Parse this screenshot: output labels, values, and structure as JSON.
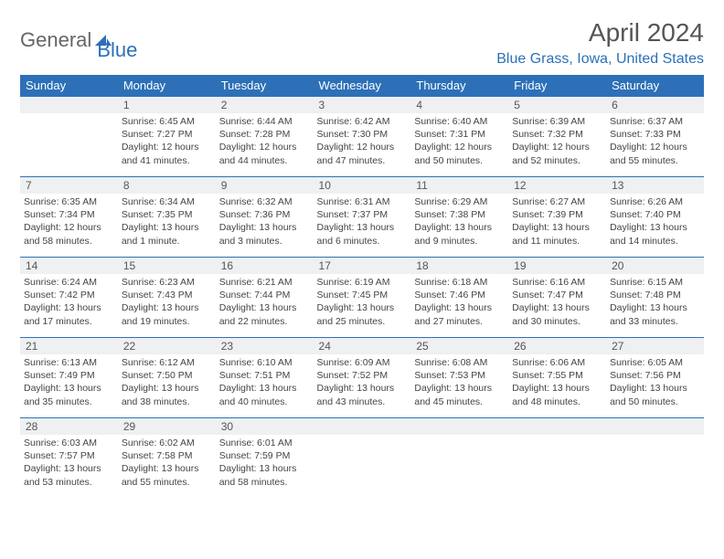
{
  "logo": {
    "word1": "General",
    "word2": "Blue"
  },
  "title": "April 2024",
  "location": "Blue Grass, Iowa, United States",
  "colors": {
    "accent": "#2d70b7",
    "header_bg": "#2d70b7",
    "daynum_bg": "#eef0f2",
    "text": "#444444"
  },
  "day_headers": [
    "Sunday",
    "Monday",
    "Tuesday",
    "Wednesday",
    "Thursday",
    "Friday",
    "Saturday"
  ],
  "weeks": [
    [
      {
        "n": "",
        "sr": "",
        "ss": "",
        "dl": ""
      },
      {
        "n": "1",
        "sr": "Sunrise: 6:45 AM",
        "ss": "Sunset: 7:27 PM",
        "dl": "Daylight: 12 hours and 41 minutes."
      },
      {
        "n": "2",
        "sr": "Sunrise: 6:44 AM",
        "ss": "Sunset: 7:28 PM",
        "dl": "Daylight: 12 hours and 44 minutes."
      },
      {
        "n": "3",
        "sr": "Sunrise: 6:42 AM",
        "ss": "Sunset: 7:30 PM",
        "dl": "Daylight: 12 hours and 47 minutes."
      },
      {
        "n": "4",
        "sr": "Sunrise: 6:40 AM",
        "ss": "Sunset: 7:31 PM",
        "dl": "Daylight: 12 hours and 50 minutes."
      },
      {
        "n": "5",
        "sr": "Sunrise: 6:39 AM",
        "ss": "Sunset: 7:32 PM",
        "dl": "Daylight: 12 hours and 52 minutes."
      },
      {
        "n": "6",
        "sr": "Sunrise: 6:37 AM",
        "ss": "Sunset: 7:33 PM",
        "dl": "Daylight: 12 hours and 55 minutes."
      }
    ],
    [
      {
        "n": "7",
        "sr": "Sunrise: 6:35 AM",
        "ss": "Sunset: 7:34 PM",
        "dl": "Daylight: 12 hours and 58 minutes."
      },
      {
        "n": "8",
        "sr": "Sunrise: 6:34 AM",
        "ss": "Sunset: 7:35 PM",
        "dl": "Daylight: 13 hours and 1 minute."
      },
      {
        "n": "9",
        "sr": "Sunrise: 6:32 AM",
        "ss": "Sunset: 7:36 PM",
        "dl": "Daylight: 13 hours and 3 minutes."
      },
      {
        "n": "10",
        "sr": "Sunrise: 6:31 AM",
        "ss": "Sunset: 7:37 PM",
        "dl": "Daylight: 13 hours and 6 minutes."
      },
      {
        "n": "11",
        "sr": "Sunrise: 6:29 AM",
        "ss": "Sunset: 7:38 PM",
        "dl": "Daylight: 13 hours and 9 minutes."
      },
      {
        "n": "12",
        "sr": "Sunrise: 6:27 AM",
        "ss": "Sunset: 7:39 PM",
        "dl": "Daylight: 13 hours and 11 minutes."
      },
      {
        "n": "13",
        "sr": "Sunrise: 6:26 AM",
        "ss": "Sunset: 7:40 PM",
        "dl": "Daylight: 13 hours and 14 minutes."
      }
    ],
    [
      {
        "n": "14",
        "sr": "Sunrise: 6:24 AM",
        "ss": "Sunset: 7:42 PM",
        "dl": "Daylight: 13 hours and 17 minutes."
      },
      {
        "n": "15",
        "sr": "Sunrise: 6:23 AM",
        "ss": "Sunset: 7:43 PM",
        "dl": "Daylight: 13 hours and 19 minutes."
      },
      {
        "n": "16",
        "sr": "Sunrise: 6:21 AM",
        "ss": "Sunset: 7:44 PM",
        "dl": "Daylight: 13 hours and 22 minutes."
      },
      {
        "n": "17",
        "sr": "Sunrise: 6:19 AM",
        "ss": "Sunset: 7:45 PM",
        "dl": "Daylight: 13 hours and 25 minutes."
      },
      {
        "n": "18",
        "sr": "Sunrise: 6:18 AM",
        "ss": "Sunset: 7:46 PM",
        "dl": "Daylight: 13 hours and 27 minutes."
      },
      {
        "n": "19",
        "sr": "Sunrise: 6:16 AM",
        "ss": "Sunset: 7:47 PM",
        "dl": "Daylight: 13 hours and 30 minutes."
      },
      {
        "n": "20",
        "sr": "Sunrise: 6:15 AM",
        "ss": "Sunset: 7:48 PM",
        "dl": "Daylight: 13 hours and 33 minutes."
      }
    ],
    [
      {
        "n": "21",
        "sr": "Sunrise: 6:13 AM",
        "ss": "Sunset: 7:49 PM",
        "dl": "Daylight: 13 hours and 35 minutes."
      },
      {
        "n": "22",
        "sr": "Sunrise: 6:12 AM",
        "ss": "Sunset: 7:50 PM",
        "dl": "Daylight: 13 hours and 38 minutes."
      },
      {
        "n": "23",
        "sr": "Sunrise: 6:10 AM",
        "ss": "Sunset: 7:51 PM",
        "dl": "Daylight: 13 hours and 40 minutes."
      },
      {
        "n": "24",
        "sr": "Sunrise: 6:09 AM",
        "ss": "Sunset: 7:52 PM",
        "dl": "Daylight: 13 hours and 43 minutes."
      },
      {
        "n": "25",
        "sr": "Sunrise: 6:08 AM",
        "ss": "Sunset: 7:53 PM",
        "dl": "Daylight: 13 hours and 45 minutes."
      },
      {
        "n": "26",
        "sr": "Sunrise: 6:06 AM",
        "ss": "Sunset: 7:55 PM",
        "dl": "Daylight: 13 hours and 48 minutes."
      },
      {
        "n": "27",
        "sr": "Sunrise: 6:05 AM",
        "ss": "Sunset: 7:56 PM",
        "dl": "Daylight: 13 hours and 50 minutes."
      }
    ],
    [
      {
        "n": "28",
        "sr": "Sunrise: 6:03 AM",
        "ss": "Sunset: 7:57 PM",
        "dl": "Daylight: 13 hours and 53 minutes."
      },
      {
        "n": "29",
        "sr": "Sunrise: 6:02 AM",
        "ss": "Sunset: 7:58 PM",
        "dl": "Daylight: 13 hours and 55 minutes."
      },
      {
        "n": "30",
        "sr": "Sunrise: 6:01 AM",
        "ss": "Sunset: 7:59 PM",
        "dl": "Daylight: 13 hours and 58 minutes."
      },
      {
        "n": "",
        "sr": "",
        "ss": "",
        "dl": ""
      },
      {
        "n": "",
        "sr": "",
        "ss": "",
        "dl": ""
      },
      {
        "n": "",
        "sr": "",
        "ss": "",
        "dl": ""
      },
      {
        "n": "",
        "sr": "",
        "ss": "",
        "dl": ""
      }
    ]
  ]
}
